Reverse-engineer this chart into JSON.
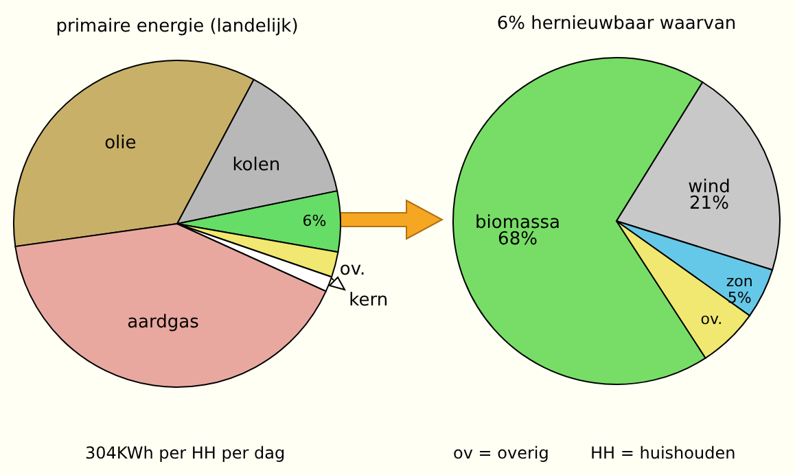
{
  "chart_data": [
    {
      "type": "pie",
      "title": "primaire energie (landelijk)",
      "categories": [
        "olie",
        "kolen",
        null,
        "ov.",
        "kern",
        "aardgas"
      ],
      "values": [
        35,
        14,
        6,
        2.5,
        1.5,
        41
      ],
      "colors": [
        "#c8b068",
        "#b8b8b8",
        "#66dd66",
        "#f0e870",
        "#ffffff",
        "#e8a8a0"
      ],
      "value_labels": [
        null,
        null,
        "6%",
        null,
        null,
        null
      ],
      "annotations": [
        "304KWh per HH per dag",
        "ov = overig",
        "HH = huishouden"
      ]
    },
    {
      "type": "pie",
      "title": "6% hernieuwbaar waarvan",
      "categories": [
        "biomassa",
        "wind",
        "zon",
        "ov."
      ],
      "values": [
        68,
        21,
        5,
        6
      ],
      "colors": [
        "#77dd66",
        "#c8c8c8",
        "#66c8e8",
        "#f0e870"
      ],
      "value_labels": [
        "68%",
        "21%",
        "5%",
        null
      ]
    }
  ]
}
